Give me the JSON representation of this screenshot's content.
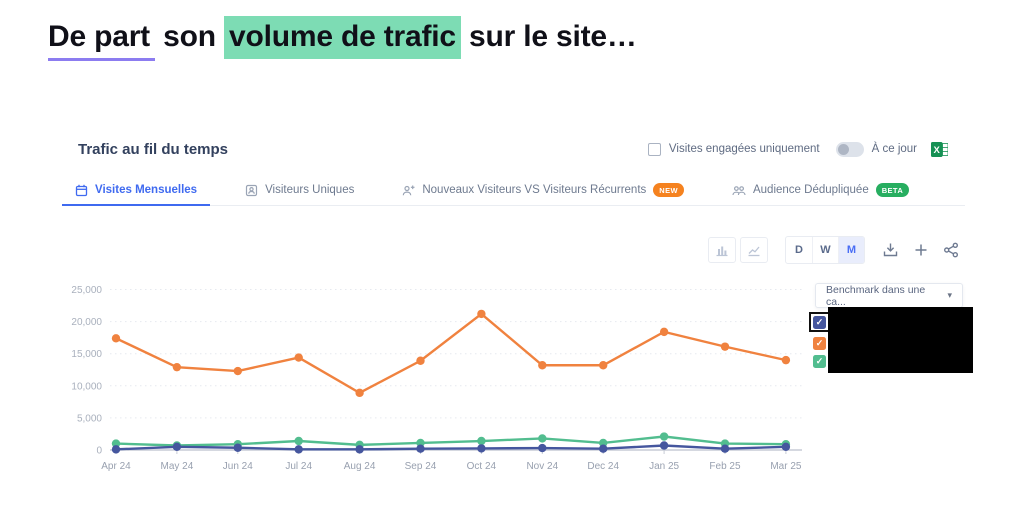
{
  "icons": {
    "caret_down": "▾",
    "check": "✓"
  },
  "slide": {
    "title": {
      "underlined": "De part",
      "middle": " son ",
      "highlighted": "volume de trafic",
      "rest": " sur le site…",
      "highlight_color": "#7ddcb4",
      "underline_color": "#8c7cf0"
    }
  },
  "widget": {
    "title": "Trafic au fil du temps",
    "controls": {
      "engaged_label": "Visites engagées uniquement",
      "engaged_checked": false,
      "toggle_label": "À ce jour",
      "toggle_on": false
    },
    "tabs": [
      {
        "label": "Visites Mensuelles",
        "icon": "calendar-icon",
        "active": true
      },
      {
        "label": "Visiteurs Uniques",
        "icon": "unique-visitor-icon",
        "active": false
      },
      {
        "label": "Nouveaux Visiteurs VS Visiteurs Récurrents",
        "icon": "person-plus-icon",
        "badge": "NEW",
        "badge_color": "#f5821f",
        "active": false
      },
      {
        "label": "Audience Dédupliquée",
        "icon": "people-icon",
        "badge": "BETA",
        "badge_color": "#27ae60",
        "active": false
      }
    ],
    "toolbar": {
      "chart_type_buttons": [
        "bar-chart-icon",
        "line-chart-icon"
      ],
      "granularity": [
        "D",
        "W",
        "M"
      ],
      "granularity_selected": "M",
      "actions": [
        "download-icon",
        "plus-icon",
        "share-icon"
      ],
      "accent_color": "#4a6ef5"
    },
    "benchmark": {
      "placeholder": "Benchmark dans une ca..."
    },
    "legend": {
      "items": [
        {
          "color": "#45569e",
          "checked": true,
          "focused": true,
          "label_redacted": true
        },
        {
          "color": "#f0823f",
          "checked": true,
          "focused": false,
          "label_redacted": true
        },
        {
          "color": "#52bd8f",
          "checked": true,
          "focused": false,
          "label_redacted": true
        }
      ]
    }
  },
  "chart_data": {
    "type": "line",
    "x": [
      "Apr 24",
      "May 24",
      "Jun 24",
      "Jul 24",
      "Aug 24",
      "Sep 24",
      "Oct 24",
      "Nov 24",
      "Dec 24",
      "Jan 25",
      "Feb 25",
      "Mar 25"
    ],
    "series": [
      {
        "name": "",
        "label_redacted": true,
        "color": "#f0823f",
        "values": [
          17400,
          12900,
          12300,
          14400,
          8900,
          13900,
          21200,
          13200,
          13200,
          18400,
          16100,
          14000
        ]
      },
      {
        "name": "",
        "label_redacted": true,
        "color": "#45569e",
        "values": [
          100,
          500,
          350,
          100,
          100,
          200,
          250,
          300,
          200,
          700,
          200,
          500
        ]
      },
      {
        "name": "",
        "label_redacted": true,
        "color": "#52bd8f",
        "values": [
          1000,
          700,
          900,
          1400,
          800,
          1100,
          1400,
          1800,
          1100,
          2100,
          1000,
          900
        ]
      }
    ],
    "ylim": [
      0,
      25000
    ],
    "yticks": [
      0,
      5000,
      10000,
      15000,
      20000,
      25000
    ],
    "grid": "horizontal-dotted",
    "legend_position": "right",
    "title": "Trafic au fil du temps",
    "xlabel": "",
    "ylabel": ""
  }
}
